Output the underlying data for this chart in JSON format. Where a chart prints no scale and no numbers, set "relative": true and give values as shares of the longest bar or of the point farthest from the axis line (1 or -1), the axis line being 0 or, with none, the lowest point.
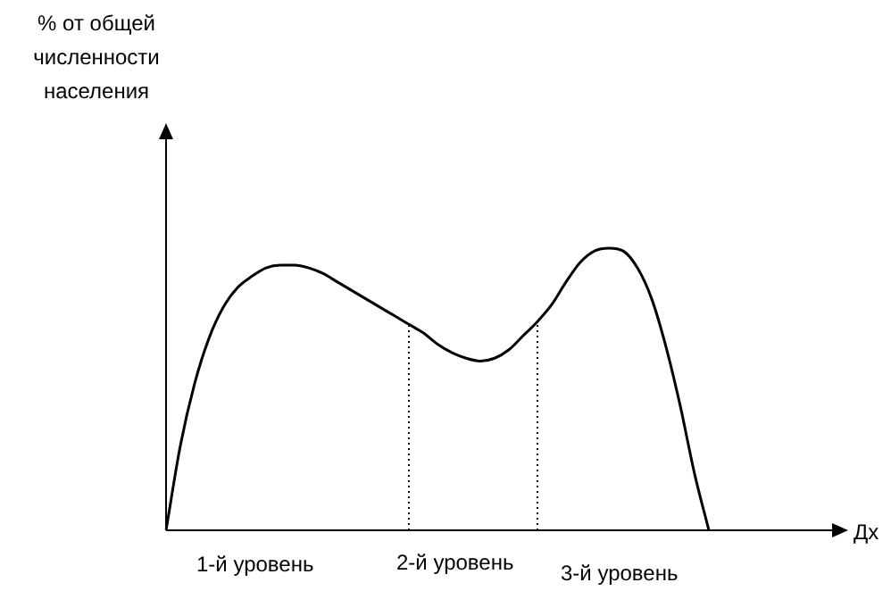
{
  "chart_data": {
    "type": "line",
    "relative": true,
    "xlabel": "Дх",
    "color": "#000000",
    "marker": "none",
    "line_style": "solid",
    "categories": [
      null,
      null,
      null,
      null,
      null,
      null,
      null,
      null,
      null,
      null,
      null,
      null,
      null,
      null,
      null,
      null,
      null,
      null,
      null,
      null,
      null,
      null,
      null,
      null,
      null,
      null,
      null,
      null,
      null,
      null,
      null,
      null,
      null,
      null,
      null,
      null,
      null,
      null,
      null,
      null,
      null,
      null,
      null,
      null,
      null,
      null,
      null,
      null
    ],
    "values": [
      0,
      0.3,
      0.52,
      0.68,
      0.79,
      0.86,
      0.9,
      0.93,
      0.94,
      0.94,
      0.93,
      0.91,
      0.88,
      0.85,
      0.82,
      0.79,
      0.76,
      0.73,
      0.7,
      0.66,
      0.63,
      0.61,
      0.6,
      0.61,
      0.64,
      0.69,
      0.74,
      0.8,
      0.88,
      0.95,
      0.99,
      1,
      0.99,
      0.93,
      0.82,
      0.65,
      0.44,
      0.2,
      0,
      null,
      null,
      null,
      null,
      null,
      null,
      null,
      null,
      null
    ],
    "annotations": [
      "% от общей численности населения",
      "1-й уровень",
      "2-й уровень",
      "3-й уровень"
    ]
  }
}
